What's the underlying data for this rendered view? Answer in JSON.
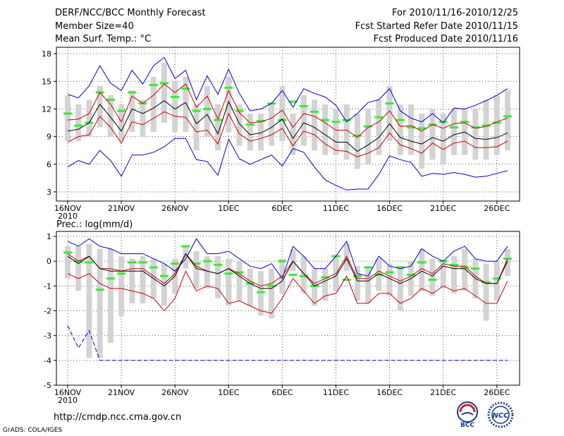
{
  "header": {
    "title": "DERF/NCC/BCC Monthly Forecast",
    "member_size": "Member Size=40",
    "variable": "Mean Surf. Temp.: °C",
    "period": "For 2010/11/16-2010/12/25",
    "start_date": "Fcst Started Refer Date 2010/11/15",
    "produced_date": "Fcst Produced Date 2010/11/16"
  },
  "footer": {
    "url": "http://cmdp.ncc.cma.gov.cn",
    "grads": "GrADS: COLA/IGES",
    "logo_bcc": "BCC",
    "logo_ncc": "NCC"
  },
  "colors": {
    "max_min": "#0000cc",
    "spread": "#cc0000",
    "mean": "#000000",
    "box": "#d3d3d3",
    "clim": "#33ee33"
  },
  "chart_data": [
    {
      "type": "line",
      "title": "Mean Surf. Temp.: °C",
      "ylim": [
        2,
        18.7
      ],
      "yticks": [
        3,
        6,
        9,
        12,
        15,
        18
      ],
      "xticks": [
        "16NOV",
        "21NOV",
        "26NOV",
        "1DEC",
        "6DEC",
        "11DEC",
        "16DEC",
        "21DEC",
        "26DEC"
      ],
      "year_label": "2010",
      "series": [
        {
          "name": "max",
          "values": [
            13.6,
            13.2,
            14.5,
            16.7,
            14.8,
            14.0,
            16.2,
            14.7,
            16.7,
            17.6,
            15.3,
            16.2,
            13.0,
            15.6,
            13.6,
            16.3,
            13.7,
            11.8,
            12.0,
            12.6,
            14.0,
            12.2,
            14.2,
            13.7,
            13.3,
            12.4,
            10.6,
            11.5,
            12.7,
            13.0,
            14.2,
            11.8,
            11.0,
            10.6,
            11.5,
            10.5,
            12.1,
            12.0,
            12.4,
            12.9,
            13.5,
            14.2
          ]
        },
        {
          "name": "spread_upper",
          "values": [
            10.8,
            10.9,
            11.5,
            13.8,
            12.5,
            10.6,
            13.4,
            12.6,
            13.5,
            14.7,
            13.8,
            14.7,
            12.2,
            13.4,
            10.9,
            14.0,
            11.6,
            10.5,
            10.6,
            11.0,
            11.9,
            10.0,
            11.5,
            11.2,
            10.5,
            9.7,
            9.7,
            8.9,
            10.0,
            10.6,
            11.8,
            10.1,
            10.2,
            9.6,
            10.3,
            9.9,
            10.4,
            10.5,
            9.9,
            10.1,
            10.6,
            11.0
          ]
        },
        {
          "name": "mean",
          "values": [
            9.6,
            9.8,
            10.5,
            12.5,
            11.1,
            9.6,
            12.0,
            11.5,
            12.1,
            12.9,
            12.0,
            12.7,
            10.4,
            11.4,
            9.3,
            12.8,
            10.4,
            9.2,
            9.4,
            10.0,
            10.9,
            8.8,
            10.5,
            10.0,
            9.2,
            8.4,
            8.4,
            7.4,
            8.1,
            8.9,
            10.4,
            8.9,
            8.5,
            8.2,
            8.9,
            8.5,
            9.2,
            9.5,
            8.8,
            8.7,
            8.9,
            9.4
          ]
        },
        {
          "name": "spread_lower",
          "values": [
            8.4,
            9.0,
            9.2,
            11.2,
            10.0,
            8.3,
            10.6,
            10.3,
            11.0,
            11.7,
            11.2,
            11.1,
            9.5,
            9.7,
            8.2,
            11.5,
            9.3,
            8.5,
            8.8,
            9.2,
            9.9,
            8.0,
            9.6,
            9.2,
            8.2,
            7.5,
            7.4,
            6.8,
            7.2,
            7.8,
            9.4,
            8.1,
            7.7,
            7.2,
            8.3,
            7.6,
            8.3,
            8.5,
            7.8,
            7.8,
            7.9,
            8.5
          ]
        },
        {
          "name": "min",
          "values": [
            5.7,
            6.4,
            6.0,
            7.5,
            6.4,
            4.7,
            7.0,
            7.0,
            7.3,
            7.9,
            8.8,
            8.8,
            6.5,
            6.3,
            4.8,
            8.7,
            6.6,
            6.0,
            6.5,
            7.0,
            5.8,
            7.7,
            7.3,
            5.7,
            4.3,
            3.7,
            3.2,
            3.3,
            3.3,
            4.9,
            6.9,
            6.5,
            6.2,
            4.7,
            5.0,
            4.9,
            5.1,
            4.9,
            4.6,
            4.7,
            5.0,
            5.3
          ]
        },
        {
          "name": "box_upper",
          "values": [
            13.5,
            12.5,
            13.0,
            14.5,
            13.5,
            12.5,
            14.0,
            13.0,
            15.5,
            17.0,
            15.0,
            15.5,
            12.5,
            14.5,
            12.5,
            15.5,
            12.5,
            11.5,
            11.5,
            12.5,
            14.5,
            11.5,
            13.5,
            13.0,
            12.5,
            12.0,
            12.5,
            11.5,
            12.0,
            13.0,
            14.5,
            12.5,
            12.5,
            11.5,
            12.0,
            11.5,
            12.0,
            12.0,
            12.0,
            13.0,
            13.5,
            14.0
          ]
        },
        {
          "name": "box_lower",
          "values": [
            8.5,
            8.5,
            9.0,
            10.0,
            9.0,
            8.5,
            9.5,
            9.0,
            9.5,
            10.5,
            9.5,
            9.5,
            7.5,
            9.0,
            7.5,
            9.5,
            8.0,
            7.5,
            7.5,
            8.0,
            8.5,
            7.0,
            8.0,
            7.5,
            7.0,
            7.0,
            6.5,
            5.5,
            6.0,
            7.0,
            8.5,
            7.0,
            7.0,
            5.5,
            6.5,
            6.0,
            7.0,
            7.0,
            6.5,
            6.5,
            7.0,
            7.5
          ]
        },
        {
          "name": "climatology",
          "values": [
            11.5,
            10.2,
            10.5,
            13.8,
            13.0,
            11.8,
            13.8,
            12.6,
            14.6,
            14.8,
            13.3,
            14.2,
            11.8,
            12.0,
            10.8,
            14.3,
            11.8,
            10.3,
            10.7,
            12.6,
            10.8,
            12.8,
            12.3,
            11.7,
            10.8,
            10.6,
            10.8,
            9.1,
            10.1,
            11.1,
            12.6,
            10.8,
            10.0,
            9.9,
            10.3,
            10.6,
            10.0,
            10.6,
            10.0,
            10.2,
            10.5,
            11.2
          ]
        }
      ]
    },
    {
      "type": "line",
      "title": "Prec.: log(mm/d)",
      "ylim": [
        -5,
        1.2
      ],
      "yticks": [
        -5,
        -4,
        -3,
        -2,
        -1,
        0,
        1
      ],
      "xticks": [
        "16NOV",
        "21NOV",
        "26NOV",
        "1DEC",
        "6DEC",
        "11DEC",
        "16DEC",
        "21DEC",
        "26DEC"
      ],
      "year_label": "2010",
      "series": [
        {
          "name": "max",
          "values": [
            0.8,
            0.6,
            0.9,
            0.6,
            0.5,
            0.3,
            0.3,
            0.3,
            0.1,
            -0.1,
            -0.4,
            0.1,
            0.9,
            0.3,
            0.3,
            0.4,
            0.1,
            -0.2,
            -0.3,
            -0.1,
            -0.7,
            0.6,
            0.2,
            -0.3,
            -0.3,
            0.2,
            0.8,
            -0.5,
            -0.6,
            0.2,
            -0.2,
            -0.3,
            -0.2,
            0.5,
            0.2,
            0.0,
            0.4,
            0.6,
            0.1,
            0.0,
            0.0,
            0.6
          ]
        },
        {
          "name": "spread_upper",
          "values": [
            0.3,
            0.0,
            0.2,
            -0.3,
            -0.3,
            -0.4,
            -0.3,
            -0.3,
            -0.6,
            -0.9,
            -0.5,
            0.3,
            -0.2,
            -0.4,
            -0.5,
            -0.3,
            -0.5,
            -0.8,
            -1.0,
            -0.9,
            -0.6,
            0.0,
            -0.5,
            -0.9,
            -0.7,
            -0.5,
            0.2,
            -0.7,
            -0.7,
            -0.4,
            -0.6,
            -0.8,
            -0.6,
            -0.3,
            -0.5,
            -0.1,
            -0.2,
            -0.2,
            -0.6,
            -0.9,
            -0.9,
            0.1
          ]
        },
        {
          "name": "mean",
          "values": [
            0.2,
            -0.1,
            0.2,
            -0.3,
            -0.4,
            -0.4,
            -0.4,
            -0.4,
            -0.7,
            -1.0,
            -0.6,
            0.3,
            -0.3,
            -0.4,
            -0.5,
            -0.3,
            -0.6,
            -0.9,
            -1.1,
            -1.1,
            -0.8,
            0.0,
            -0.5,
            -1.0,
            -0.8,
            -0.6,
            0.1,
            -0.8,
            -0.8,
            -0.5,
            -0.7,
            -0.9,
            -0.7,
            -0.4,
            -0.6,
            -0.2,
            -0.3,
            -0.3,
            -0.7,
            -0.9,
            -0.9,
            0.0
          ]
        },
        {
          "name": "spread_lower",
          "values": [
            -0.5,
            -0.7,
            -0.5,
            -0.9,
            -1.1,
            -1.1,
            -1.2,
            -1.3,
            -1.5,
            -2.0,
            -1.5,
            -0.4,
            -1.2,
            -1.0,
            -1.1,
            -1.7,
            -1.6,
            -1.8,
            -2.0,
            -2.1,
            -1.5,
            -0.7,
            -1.2,
            -1.7,
            -1.4,
            -1.3,
            -0.6,
            -1.7,
            -1.7,
            -1.3,
            -1.3,
            -1.7,
            -1.5,
            -1.1,
            -1.3,
            -1.0,
            -1.2,
            -1.1,
            -1.4,
            -1.7,
            -1.7,
            -0.8
          ]
        },
        {
          "name": "min",
          "values": [
            -2.6,
            -3.5,
            -2.8,
            -4.0,
            -4.0,
            -4.0,
            -4.0,
            -4.0,
            -4.0,
            -4.0,
            -4.0,
            -4.0,
            -4.0,
            -4.0,
            -4.0,
            -4.0,
            -4.0,
            -4.0,
            -4.0,
            -4.0,
            -4.0,
            -4.0,
            -4.0,
            -4.0,
            -4.0,
            -4.0,
            -4.0,
            -4.0,
            -4.0,
            -4.0,
            -4.0,
            -4.0,
            -4.0,
            -4.0,
            -4.0,
            -4.0,
            -4.0,
            -4.0,
            -4.0,
            -4.0,
            -4.0,
            -4.0
          ]
        },
        {
          "name": "box_upper",
          "values": [
            0.6,
            0.6,
            0.7,
            0.5,
            0.5,
            0.2,
            0.1,
            0.2,
            0.1,
            -0.1,
            0.1,
            0.6,
            0.4,
            0.2,
            0.2,
            0.1,
            0.0,
            -0.3,
            -0.4,
            -0.3,
            0.1,
            0.5,
            0.2,
            -0.3,
            -0.3,
            0.2,
            0.7,
            -0.2,
            -0.2,
            0.1,
            -0.1,
            -0.2,
            0.0,
            0.5,
            0.1,
            0.0,
            0.2,
            0.5,
            0.1,
            -0.1,
            0.0,
            0.5
          ]
        },
        {
          "name": "box_lower",
          "values": [
            -0.7,
            -1.2,
            -3.9,
            -3.9,
            -3.3,
            -2.2,
            -1.7,
            -1.7,
            -1.5,
            -1.8,
            -1.3,
            -0.3,
            -1.1,
            -1.1,
            -1.5,
            -1.8,
            -1.6,
            -1.8,
            -2.2,
            -2.3,
            -1.3,
            -0.4,
            -1.3,
            -1.8,
            -1.6,
            -1.2,
            -0.4,
            -1.6,
            -1.7,
            -1.2,
            -1.4,
            -2.0,
            -1.4,
            -1.2,
            -1.4,
            -1.1,
            -1.3,
            -1.2,
            -1.5,
            -2.4,
            -1.6,
            -0.6
          ]
        },
        {
          "name": "climatology",
          "values": [
            0.35,
            0.0,
            -0.05,
            -1.15,
            -0.7,
            -0.5,
            -0.05,
            -0.05,
            -0.25,
            -0.6,
            -0.1,
            0.6,
            -0.1,
            0.0,
            -0.15,
            -0.5,
            -0.45,
            -0.9,
            -1.25,
            -1.0,
            0.0,
            -0.55,
            -0.6,
            -1.0,
            -0.65,
            0.2,
            -0.75,
            -0.6,
            -0.25,
            -0.55,
            -0.45,
            -0.25,
            -0.55,
            -0.05,
            -0.75,
            0.0,
            -0.15,
            -0.25,
            -0.3,
            -0.85,
            -0.7,
            0.1
          ]
        }
      ]
    }
  ]
}
